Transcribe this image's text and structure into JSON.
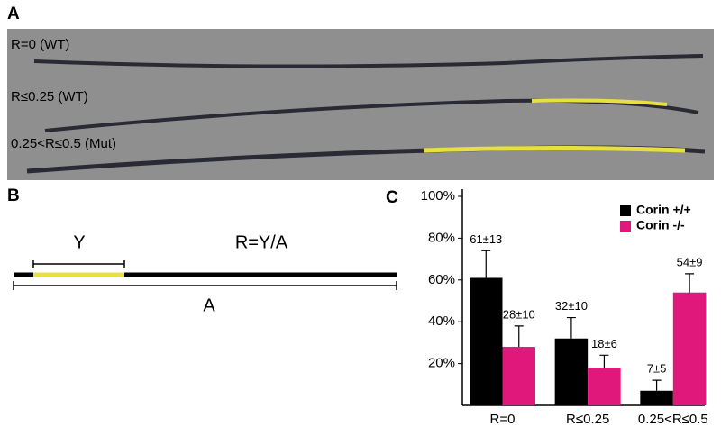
{
  "panel_a": {
    "letter": "A",
    "labels": [
      "R=0 (WT)",
      "R≤0.25 (WT)",
      "0.25<R≤0.5 (Mut)"
    ]
  },
  "panel_b": {
    "letter": "B",
    "y_label": "Y",
    "ratio_label": "R=Y/A",
    "a_label": "A"
  },
  "chart_data": {
    "type": "bar",
    "letter": "C",
    "categories": [
      "R=0",
      "R≤0.25",
      "0.25<R≤0.5"
    ],
    "series": [
      {
        "name": "Corin +/+",
        "color": "#000000",
        "values": [
          61,
          32,
          7
        ],
        "errors": [
          13,
          10,
          5
        ],
        "value_labels": [
          "61±13",
          "32±10",
          "7±5"
        ]
      },
      {
        "name": "Corin -/-",
        "color": "#e0187c",
        "values": [
          28,
          18,
          54
        ],
        "errors": [
          10,
          6,
          9
        ],
        "value_labels": [
          "28±10",
          "18±6",
          "54±9"
        ]
      }
    ],
    "ylim": [
      0,
      100
    ],
    "yticks": [
      {
        "value": 20,
        "label": "20%"
      },
      {
        "value": 40,
        "label": "40%"
      },
      {
        "value": 60,
        "label": "60%"
      },
      {
        "value": 80,
        "label": "80%"
      },
      {
        "value": 100,
        "label": "100%"
      }
    ],
    "legend": "top-right"
  }
}
